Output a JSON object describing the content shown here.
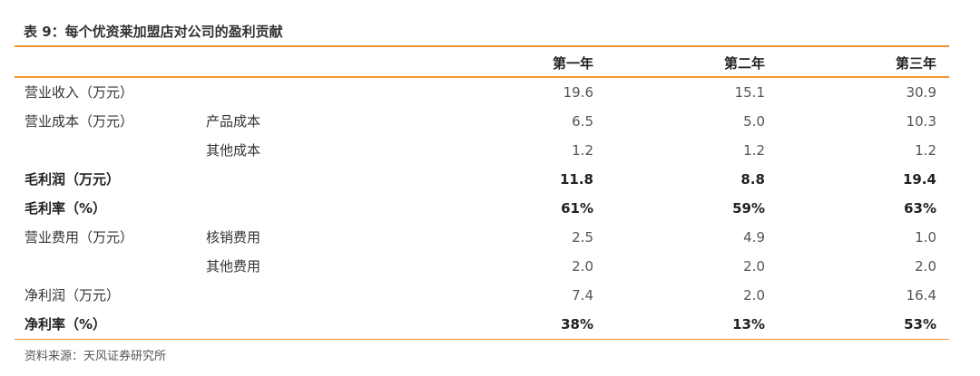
{
  "title": "表 9：每个优资莱加盟店对公司的盈利贡献",
  "columns": [
    "第一年",
    "第二年",
    "第三年"
  ],
  "rows": [
    {
      "label": "营业收入（万元）",
      "sub": "",
      "values": [
        "19.6",
        "15.1",
        "30.9"
      ],
      "bold": false
    },
    {
      "label": "营业成本（万元）",
      "sub": "产品成本",
      "values": [
        "6.5",
        "5.0",
        "10.3"
      ],
      "bold": false
    },
    {
      "label": "",
      "sub": "其他成本",
      "values": [
        "1.2",
        "1.2",
        "1.2"
      ],
      "bold": false
    },
    {
      "label": "毛利润（万元）",
      "sub": "",
      "values": [
        "11.8",
        "8.8",
        "19.4"
      ],
      "bold": true
    },
    {
      "label": "毛利率（%）",
      "sub": "",
      "values": [
        "61%",
        "59%",
        "63%"
      ],
      "bold": true
    },
    {
      "label": "营业费用（万元）",
      "sub": "核销费用",
      "values": [
        "2.5",
        "4.9",
        "1.0"
      ],
      "bold": false
    },
    {
      "label": "",
      "sub": "其他费用",
      "values": [
        "2.0",
        "2.0",
        "2.0"
      ],
      "bold": false
    },
    {
      "label": "净利润（万元）",
      "sub": "",
      "values": [
        "7.4",
        "2.0",
        "16.4"
      ],
      "bold": false
    },
    {
      "label": "净利率（%）",
      "sub": "",
      "values": [
        "38%",
        "13%",
        "53%"
      ],
      "bold": true
    }
  ],
  "source": "资料来源：天风证券研究所",
  "colors": {
    "accent": "#f0952f",
    "text": "#333333",
    "muted": "#555555"
  }
}
